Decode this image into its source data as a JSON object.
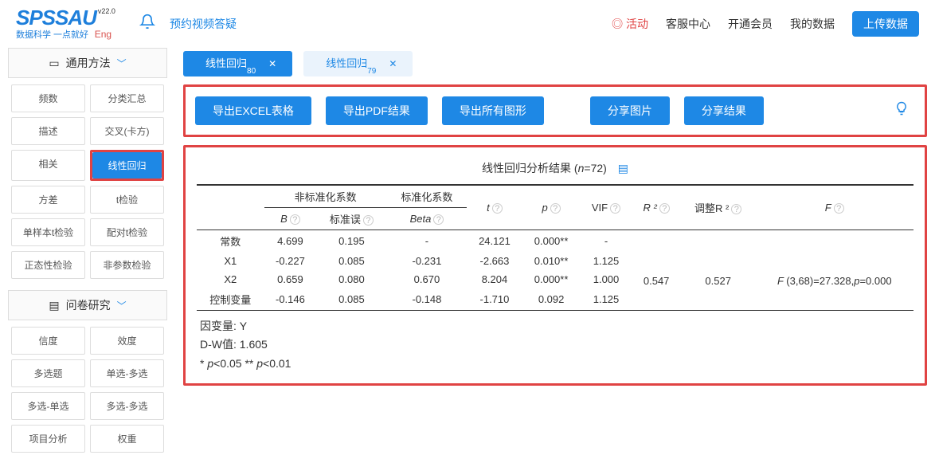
{
  "header": {
    "logo_main": "SPSSAU",
    "logo_version": "v22.0",
    "logo_sub": "数据科学 一点就好",
    "logo_eng": "Eng",
    "reserve_link": "预约视频答疑",
    "nav": {
      "activity": "◎ 活动",
      "service": "客服中心",
      "membership": "开通会员",
      "mydata": "我的数据",
      "upload": "上传数据"
    }
  },
  "sidebar": {
    "section1_title": "通用方法",
    "section1_items": [
      "频数",
      "分类汇总",
      "描述",
      "交叉(卡方)",
      "相关",
      "线性回归",
      "方差",
      "t检验",
      "单样本t检验",
      "配对t检验",
      "正态性检验",
      "非参数检验"
    ],
    "section1_active_index": 5,
    "section2_title": "问卷研究",
    "section2_items": [
      "信度",
      "效度",
      "多选题",
      "单选-多选",
      "多选-单选",
      "多选-多选",
      "项目分析",
      "权重"
    ]
  },
  "tabs": [
    {
      "label": "线性回归",
      "sub": "80",
      "active": true
    },
    {
      "label": "线性回归",
      "sub": "79",
      "active": false
    }
  ],
  "actions": [
    "导出EXCEL表格",
    "导出PDF结果",
    "导出所有图形",
    "分享图片",
    "分享结果"
  ],
  "results": {
    "title_prefix": "线性回归分析结果 (",
    "title_n_label": "n",
    "title_n_value": "=72)",
    "group_unstd": "非标准化系数",
    "group_std": "标准化系数",
    "col_B": "B",
    "col_se": "标准误",
    "col_beta": "Beta",
    "col_t": "t",
    "col_p": "p",
    "col_vif": "VIF",
    "col_r2": "R ²",
    "col_adjr2": "调整R ²",
    "col_f": "F",
    "rows": [
      {
        "name": "常数",
        "B": "4.699",
        "se": "0.195",
        "beta": "-",
        "t": "24.121",
        "p": "0.000**",
        "vif": "-"
      },
      {
        "name": "X1",
        "B": "-0.227",
        "se": "0.085",
        "beta": "-0.231",
        "t": "-2.663",
        "p": "0.010**",
        "vif": "1.125"
      },
      {
        "name": "X2",
        "B": "0.659",
        "se": "0.080",
        "beta": "0.670",
        "t": "8.204",
        "p": "0.000**",
        "vif": "1.000"
      },
      {
        "name": "控制变量",
        "B": "-0.146",
        "se": "0.085",
        "beta": "-0.148",
        "t": "-1.710",
        "p": "0.092",
        "vif": "1.125"
      }
    ],
    "r2": "0.547",
    "adjr2": "0.527",
    "f_text": "F (3,68)=27.328,p=0.000",
    "note_dv": "因变量: Y",
    "note_dw": "D-W值: 1.605",
    "note_sig": "* p<0.05 ** p<0.01"
  }
}
